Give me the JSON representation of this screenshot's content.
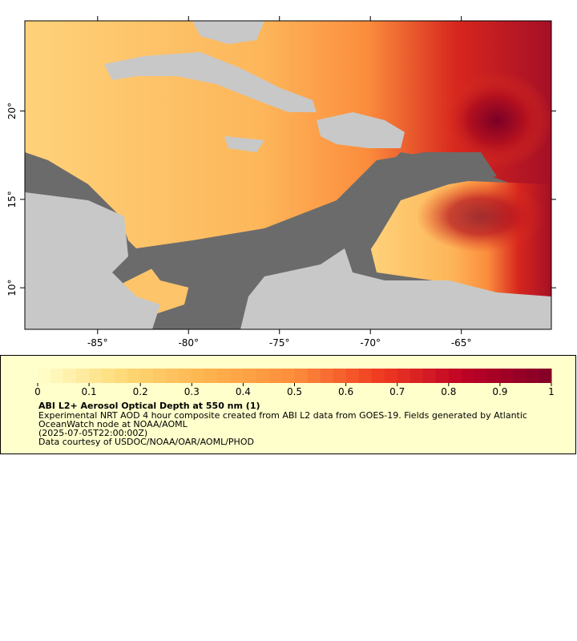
{
  "map": {
    "xlim": [
      -89,
      -60.05
    ],
    "ylim": [
      7.65,
      25.1
    ],
    "xticks": [
      {
        "value": -85,
        "label": "-85°"
      },
      {
        "value": -80,
        "label": "-80°"
      },
      {
        "value": -75,
        "label": "-75°"
      },
      {
        "value": -70,
        "label": "-70°"
      },
      {
        "value": -65,
        "label": "-65°"
      }
    ],
    "yticks": [
      {
        "value": 10,
        "label": "10°"
      },
      {
        "value": 15,
        "label": "15°"
      },
      {
        "value": 20,
        "label": "20°"
      }
    ]
  },
  "legend": {
    "colorbar": {
      "range": [
        0,
        1
      ],
      "ticks": [
        0,
        0.1,
        0.2,
        0.3,
        0.4,
        0.5,
        0.6,
        0.7,
        0.8,
        0.9,
        1
      ],
      "palette": [
        "#ffffcc",
        "#fed976",
        "#feb24c",
        "#fd8d3c",
        "#f03b20",
        "#bd0026",
        "#800026"
      ]
    },
    "title": "ABI L2+ Aerosol Optical Depth at 550 nm (1)",
    "lines": [
      "Experimental NRT AOD 4 hour composite created from ABI L2 data from GOES-19. Fields generated by Atlantic",
      "OceanWatch node at NOAA/AOML",
      "(2025-07-05T22:00:00Z)",
      "Data courtesy of USDOC/NOAA/OAR/AOML/PHOD"
    ]
  }
}
